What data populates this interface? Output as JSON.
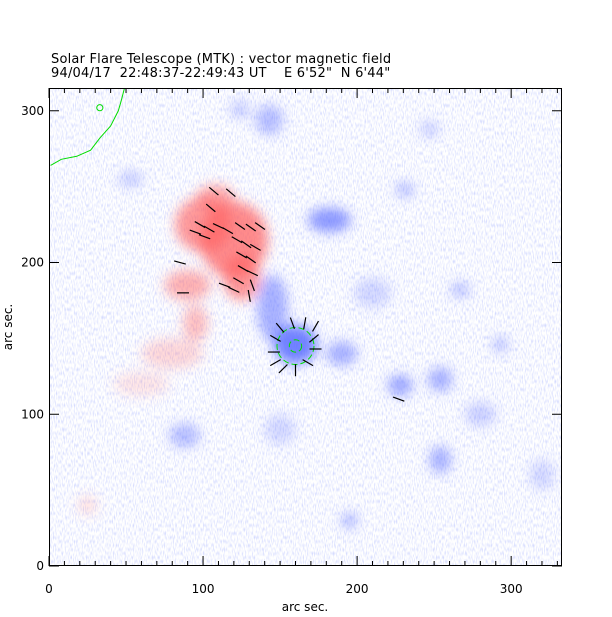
{
  "chart_data": {
    "type": "heatmap",
    "title": "Solar Flare Telescope (MTK) : vector magnetic field",
    "subtitle": "94/04/17  22:48:37-22:49:43 UT    E 6'52\"  N 6'44\"",
    "xlabel": "arc sec.",
    "ylabel": "arc sec.",
    "xlim": [
      0,
      333
    ],
    "ylim": [
      0,
      315
    ],
    "xticks": [
      "0",
      "100",
      "200",
      "300"
    ],
    "yticks": [
      "0",
      "100",
      "200",
      "300"
    ],
    "xtick_values": [
      0,
      100,
      200,
      300
    ],
    "ytick_values": [
      0,
      100,
      200,
      300
    ],
    "colors": {
      "positive": "#ff6060",
      "negative": "#5a6cff",
      "contour": "#00dd00",
      "vector": "#000000"
    },
    "positive_regions": [
      {
        "x": 120,
        "y": 215,
        "rx": 22,
        "ry": 25,
        "w": 0.9
      },
      {
        "x": 100,
        "y": 225,
        "rx": 18,
        "ry": 18,
        "w": 0.8
      },
      {
        "x": 108,
        "y": 243,
        "rx": 12,
        "ry": 8,
        "w": 0.7
      },
      {
        "x": 125,
        "y": 190,
        "rx": 12,
        "ry": 15,
        "w": 0.8
      },
      {
        "x": 90,
        "y": 185,
        "rx": 15,
        "ry": 10,
        "w": 0.6
      },
      {
        "x": 95,
        "y": 160,
        "rx": 8,
        "ry": 12,
        "w": 0.5
      },
      {
        "x": 80,
        "y": 140,
        "rx": 20,
        "ry": 10,
        "w": 0.3
      },
      {
        "x": 60,
        "y": 120,
        "rx": 18,
        "ry": 8,
        "w": 0.2
      },
      {
        "x": 25,
        "y": 40,
        "rx": 6,
        "ry": 6,
        "w": 0.25
      }
    ],
    "negative_regions": [
      {
        "x": 160,
        "y": 146,
        "rx": 14,
        "ry": 13,
        "w": 1.0
      },
      {
        "x": 145,
        "y": 170,
        "rx": 10,
        "ry": 22,
        "w": 0.6
      },
      {
        "x": 182,
        "y": 228,
        "rx": 14,
        "ry": 8,
        "w": 0.8
      },
      {
        "x": 143,
        "y": 294,
        "rx": 9,
        "ry": 10,
        "w": 0.5
      },
      {
        "x": 124,
        "y": 301,
        "rx": 6,
        "ry": 6,
        "w": 0.4
      },
      {
        "x": 190,
        "y": 140,
        "rx": 10,
        "ry": 8,
        "w": 0.6
      },
      {
        "x": 228,
        "y": 119,
        "rx": 8,
        "ry": 7,
        "w": 0.7
      },
      {
        "x": 254,
        "y": 123,
        "rx": 8,
        "ry": 8,
        "w": 0.6
      },
      {
        "x": 88,
        "y": 86,
        "rx": 10,
        "ry": 8,
        "w": 0.5
      },
      {
        "x": 254,
        "y": 70,
        "rx": 7,
        "ry": 9,
        "w": 0.6
      },
      {
        "x": 195,
        "y": 30,
        "rx": 5,
        "ry": 5,
        "w": 0.6
      },
      {
        "x": 231,
        "y": 248,
        "rx": 6,
        "ry": 5,
        "w": 0.5
      },
      {
        "x": 267,
        "y": 182,
        "rx": 6,
        "ry": 5,
        "w": 0.5
      },
      {
        "x": 293,
        "y": 146,
        "rx": 5,
        "ry": 5,
        "w": 0.5
      },
      {
        "x": 247,
        "y": 288,
        "rx": 6,
        "ry": 5,
        "w": 0.4
      },
      {
        "x": 53,
        "y": 255,
        "rx": 8,
        "ry": 5,
        "w": 0.4
      },
      {
        "x": 150,
        "y": 90,
        "rx": 10,
        "ry": 10,
        "w": 0.3
      },
      {
        "x": 280,
        "y": 100,
        "rx": 10,
        "ry": 8,
        "w": 0.35
      },
      {
        "x": 320,
        "y": 60,
        "rx": 8,
        "ry": 10,
        "w": 0.3
      },
      {
        "x": 210,
        "y": 180,
        "rx": 12,
        "ry": 10,
        "w": 0.3
      }
    ],
    "vectors": [
      [
        107,
        247,
        -40
      ],
      [
        118,
        246,
        -40
      ],
      [
        105,
        236,
        -40
      ],
      [
        98,
        225,
        -30
      ],
      [
        104,
        222,
        -30
      ],
      [
        110,
        224,
        -25
      ],
      [
        116,
        221,
        -30
      ],
      [
        124,
        224,
        -35
      ],
      [
        131,
        223,
        -35
      ],
      [
        137,
        224,
        -35
      ],
      [
        122,
        215,
        -30
      ],
      [
        128,
        212,
        -35
      ],
      [
        134,
        210,
        -30
      ],
      [
        125,
        205,
        -30
      ],
      [
        131,
        202,
        -35
      ],
      [
        126,
        196,
        -30
      ],
      [
        132,
        193,
        -25
      ],
      [
        123,
        188,
        -30
      ],
      [
        114,
        185,
        -20
      ],
      [
        120,
        182,
        -25
      ],
      [
        132,
        185,
        -70
      ],
      [
        130,
        178,
        -80
      ],
      [
        87,
        180,
        0
      ],
      [
        85,
        200,
        -15
      ],
      [
        101,
        217,
        -20
      ],
      [
        95,
        220,
        -20
      ],
      [
        150,
        157,
        -50
      ],
      [
        158,
        160,
        -70
      ],
      [
        166,
        160,
        -100
      ],
      [
        173,
        158,
        -120
      ],
      [
        147,
        150,
        -30
      ],
      [
        172,
        150,
        -140
      ],
      [
        146,
        141,
        0
      ],
      [
        173,
        143,
        180
      ],
      [
        147,
        134,
        30
      ],
      [
        168,
        134,
        150
      ],
      [
        152,
        130,
        45
      ],
      [
        160,
        129,
        90
      ],
      [
        227,
        110,
        -20
      ]
    ],
    "contours": {
      "limb_curve": [
        [
          1,
          264
        ],
        [
          8,
          268
        ],
        [
          18,
          270
        ],
        [
          27,
          274
        ],
        [
          33,
          282
        ],
        [
          40,
          290
        ],
        [
          45,
          300
        ],
        [
          47,
          307
        ],
        [
          49,
          315
        ]
      ],
      "small_circle": {
        "x": 33,
        "y": 302,
        "r": 2
      },
      "spot_contours": [
        {
          "x": 160,
          "y": 145,
          "r": 12
        },
        {
          "x": 160,
          "y": 145,
          "r": 4
        }
      ]
    }
  }
}
